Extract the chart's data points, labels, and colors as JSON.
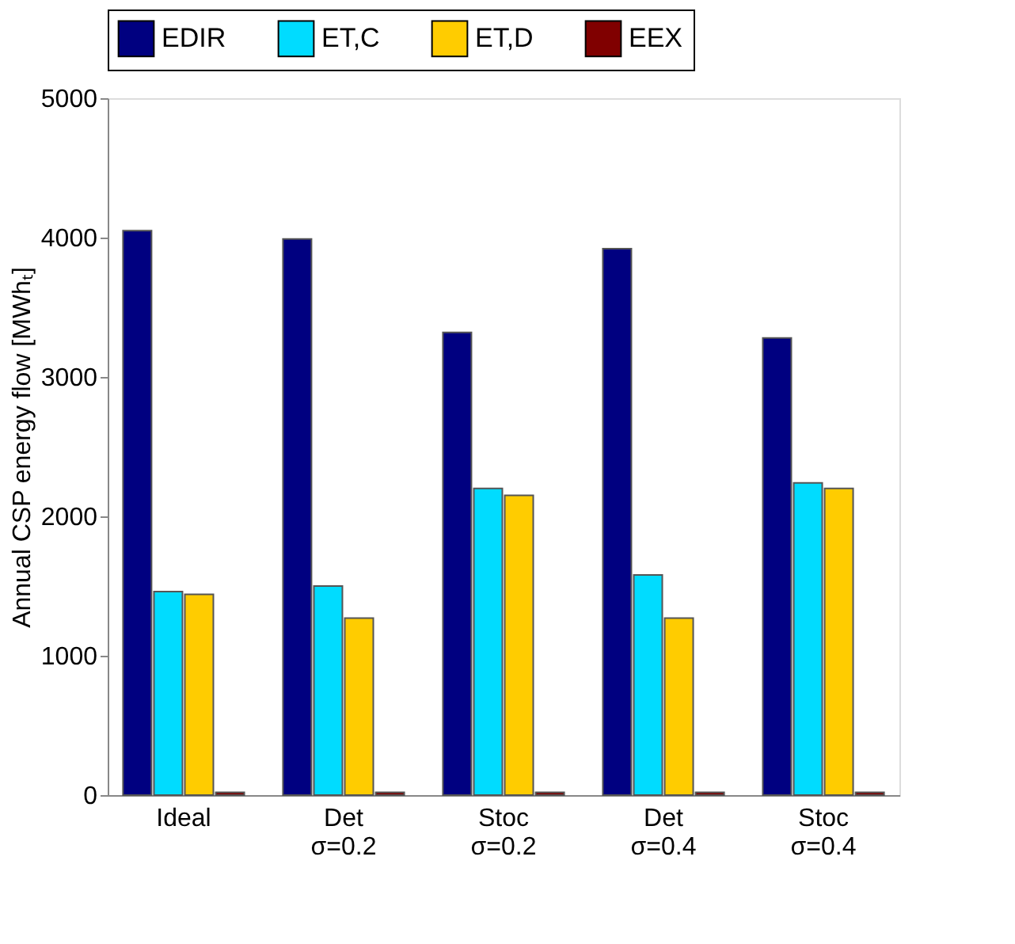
{
  "chart_data": {
    "type": "bar",
    "ylabel": "Annual CSP energy flow [MWhₜ]",
    "categories": [
      "Ideal",
      "Det\nσ=0.2",
      "Stoc\nσ=0.2",
      "Det\nσ=0.4",
      "Stoc\nσ=0.4"
    ],
    "series": [
      {
        "name": "EDIR",
        "color": "#000080",
        "values": [
          4050,
          3990,
          3320,
          3920,
          3280
        ]
      },
      {
        "name": "ET,C",
        "color": "#00dcff",
        "values": [
          1460,
          1500,
          2200,
          1580,
          2240
        ]
      },
      {
        "name": "ET,D",
        "color": "#ffcc00",
        "values": [
          1440,
          1270,
          2150,
          1270,
          2200
        ]
      },
      {
        "name": "EEX",
        "color": "#800000",
        "values": [
          20,
          20,
          20,
          20,
          20
        ]
      }
    ],
    "ylim": [
      0,
      5000
    ],
    "yticks": [
      0,
      1000,
      2000,
      3000,
      4000,
      5000
    ],
    "grid": false,
    "legend": "top"
  }
}
